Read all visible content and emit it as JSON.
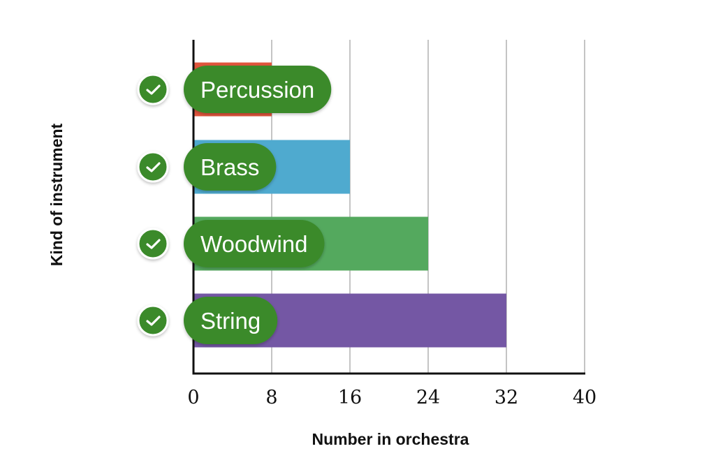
{
  "chart_data": {
    "type": "bar",
    "orientation": "horizontal",
    "categories": [
      "Percussion",
      "Brass",
      "Woodwind",
      "String"
    ],
    "values": [
      8,
      16,
      24,
      32
    ],
    "bar_colors": [
      "#e0553c",
      "#4faacf",
      "#54a95e",
      "#7457a4"
    ],
    "xlabel": "Number in orchestra",
    "ylabel": "Kind of instrument",
    "xlim": [
      0,
      40
    ],
    "xticks": [
      "0",
      "8",
      "16",
      "24",
      "32",
      "40"
    ],
    "grid": "vertical",
    "label_pill_color": "#3a8a2c",
    "check_color": "#3a8a2c",
    "check_icon": "checkmark-icon"
  }
}
